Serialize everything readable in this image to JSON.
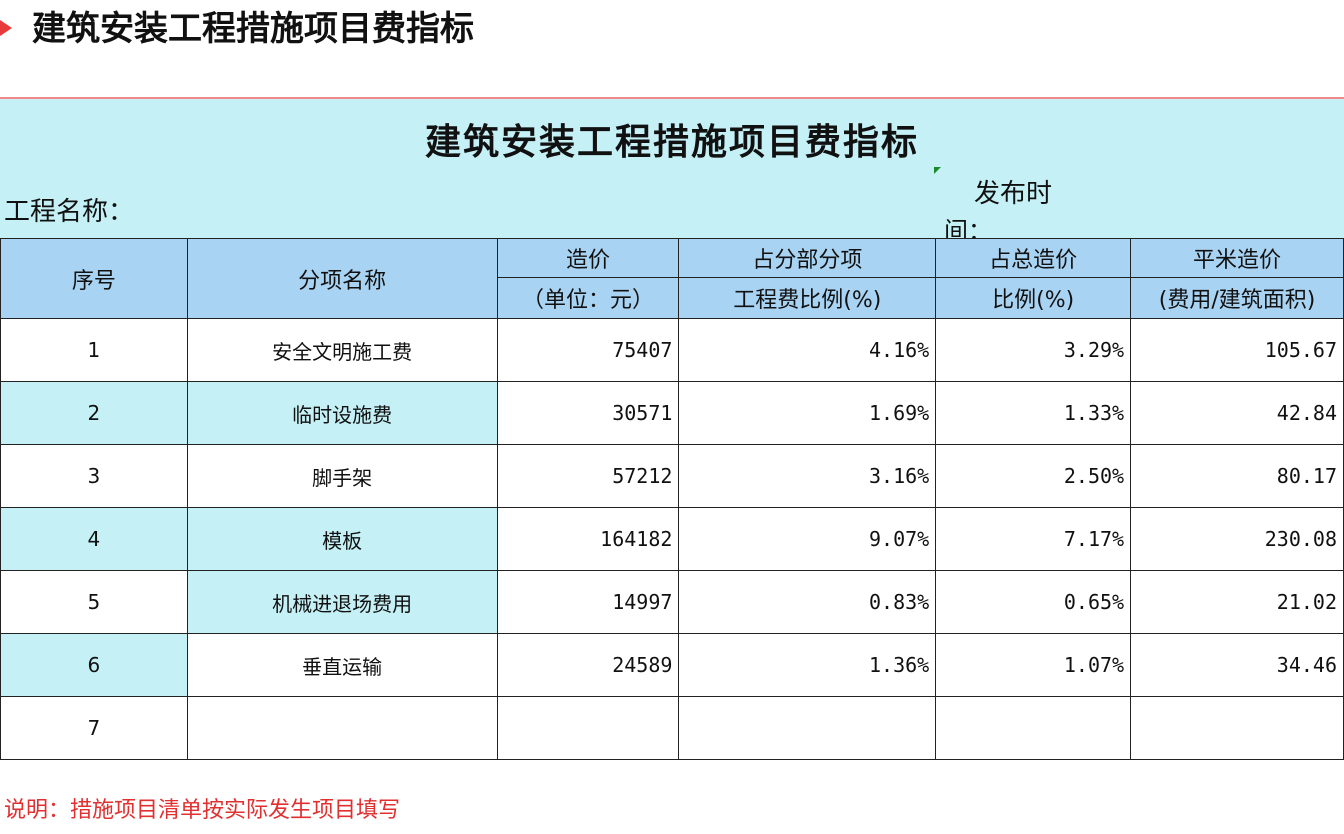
{
  "page": {
    "heading": "建筑安装工程措施项目费指标"
  },
  "sheet": {
    "title": "建筑安装工程措施项目费指标",
    "project_name_label": "工程名称：",
    "publish_label_line1": "发布时",
    "publish_label_line2": "间："
  },
  "table": {
    "headers": {
      "index": "序号",
      "name": "分项名称",
      "cost_line1": "造价",
      "cost_line2": "（单位：元）",
      "ratio_sub_line1": "占分部分项",
      "ratio_sub_line2": "工程费比例(%)",
      "ratio_total_line1": "占总造价",
      "ratio_total_line2": "比例(%)",
      "sqm_line1": "平米造价",
      "sqm_line2": "(费用/建筑面积)"
    },
    "rows": [
      {
        "index": "1",
        "name": "安全文明施工费",
        "cost": "75407",
        "ratio_sub": "4.16%",
        "ratio_total": "3.29%",
        "sqm": "105.67"
      },
      {
        "index": "2",
        "name": "临时设施费",
        "cost": "30571",
        "ratio_sub": "1.69%",
        "ratio_total": "1.33%",
        "sqm": "42.84"
      },
      {
        "index": "3",
        "name": "脚手架",
        "cost": "57212",
        "ratio_sub": "3.16%",
        "ratio_total": "2.50%",
        "sqm": "80.17"
      },
      {
        "index": "4",
        "name": "模板",
        "cost": "164182",
        "ratio_sub": "9.07%",
        "ratio_total": "7.17%",
        "sqm": "230.08"
      },
      {
        "index": "5",
        "name": "机械进退场费用",
        "cost": "14997",
        "ratio_sub": "0.83%",
        "ratio_total": "0.65%",
        "sqm": "21.02"
      },
      {
        "index": "6",
        "name": "垂直运输",
        "cost": "24589",
        "ratio_sub": "1.36%",
        "ratio_total": "1.07%",
        "sqm": "34.46"
      },
      {
        "index": "7",
        "name": "",
        "cost": "",
        "ratio_sub": "",
        "ratio_total": "",
        "sqm": ""
      }
    ]
  },
  "note": "说明：措施项目清单按实际发生项目填写",
  "colors": {
    "accent_red": "#e83a3a",
    "sheet_cyan": "#c5f1f6",
    "header_blue": "#a9d3f2",
    "note_red": "#e03030"
  }
}
